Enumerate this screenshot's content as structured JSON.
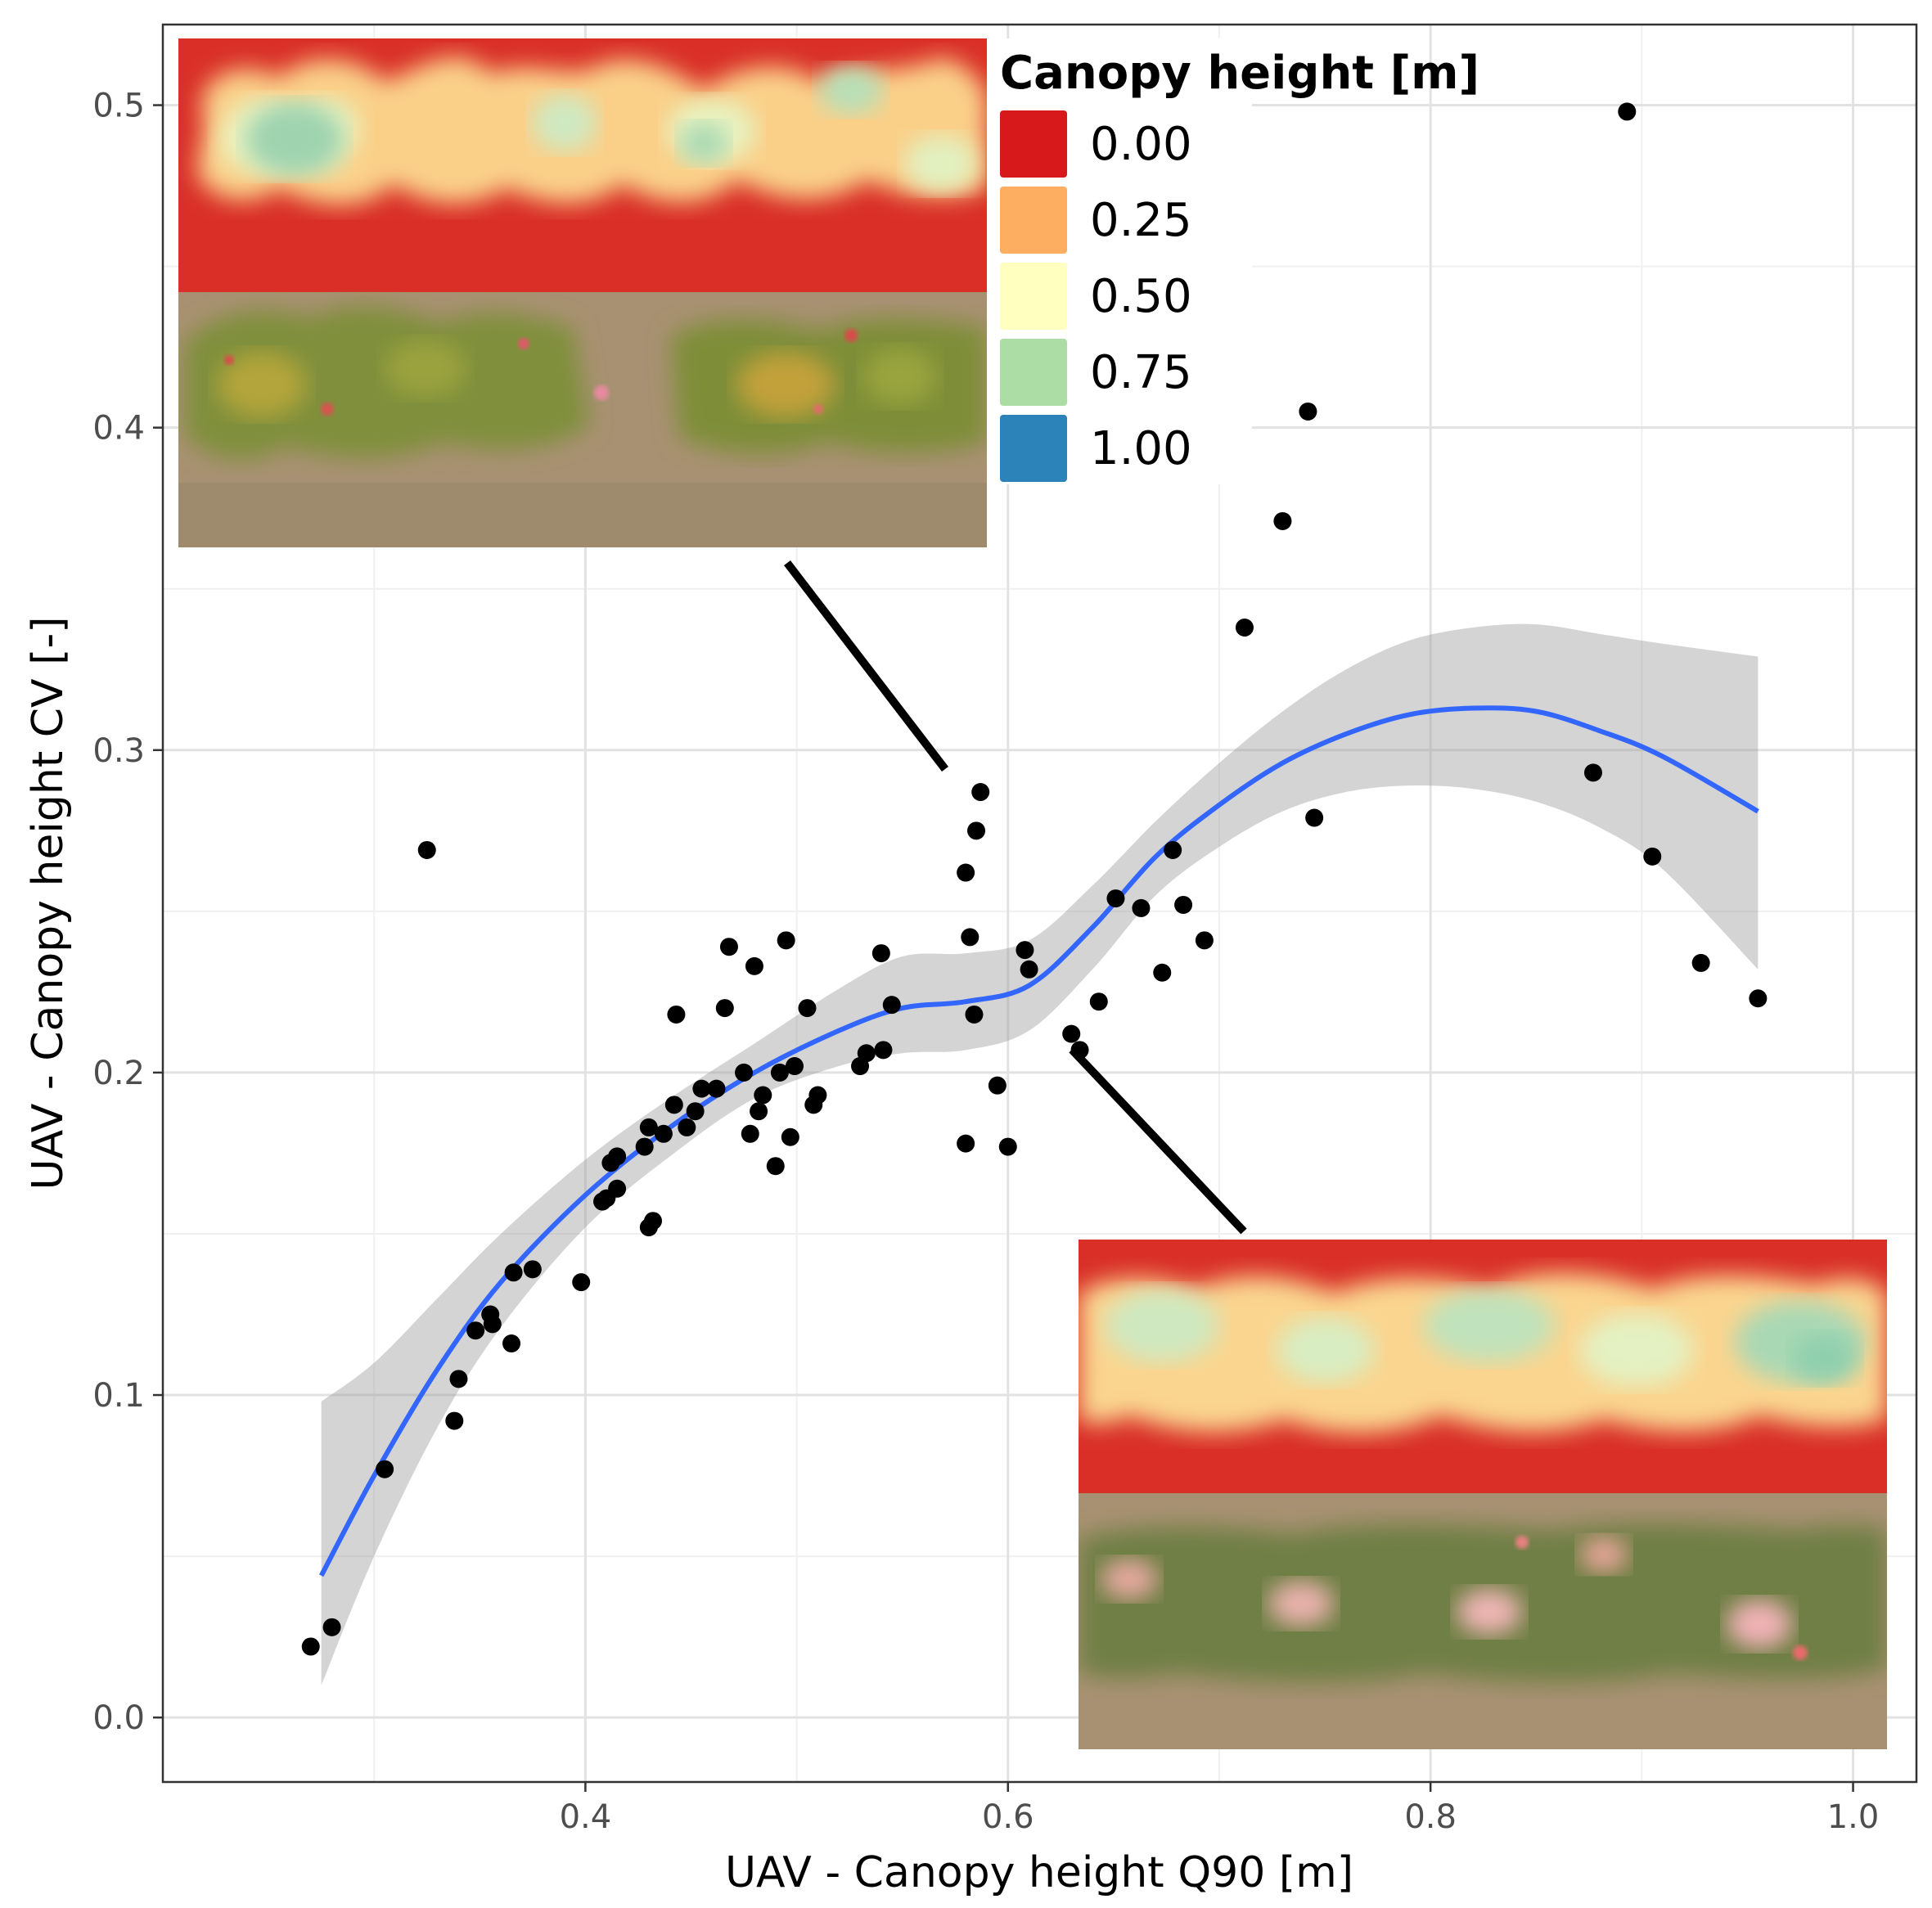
{
  "chart_data": {
    "type": "scatter",
    "xlabel": "UAV - Canopy height Q90 [m]",
    "ylabel": "UAV - Canopy height CV [-]",
    "xlim": [
      0.2,
      1.03
    ],
    "ylim": [
      -0.02,
      0.525
    ],
    "x_ticks": [
      0.4,
      0.6,
      0.8,
      1.0
    ],
    "x_tick_labels": [
      "0.4",
      "0.6",
      "0.8",
      "1.0"
    ],
    "y_ticks": [
      0.0,
      0.1,
      0.2,
      0.3,
      0.4,
      0.5
    ],
    "y_tick_labels": [
      "0.0",
      "0.1",
      "0.2",
      "0.3",
      "0.4",
      "0.5"
    ],
    "grid": true,
    "points": [
      [
        0.27,
        0.022
      ],
      [
        0.28,
        0.028
      ],
      [
        0.305,
        0.077
      ],
      [
        0.325,
        0.269
      ],
      [
        0.338,
        0.092
      ],
      [
        0.34,
        0.105
      ],
      [
        0.348,
        0.12
      ],
      [
        0.355,
        0.125
      ],
      [
        0.356,
        0.122
      ],
      [
        0.365,
        0.116
      ],
      [
        0.366,
        0.138
      ],
      [
        0.375,
        0.139
      ],
      [
        0.398,
        0.135
      ],
      [
        0.408,
        0.16
      ],
      [
        0.41,
        0.161
      ],
      [
        0.412,
        0.172
      ],
      [
        0.415,
        0.174
      ],
      [
        0.415,
        0.164
      ],
      [
        0.428,
        0.177
      ],
      [
        0.43,
        0.183
      ],
      [
        0.43,
        0.152
      ],
      [
        0.432,
        0.154
      ],
      [
        0.437,
        0.181
      ],
      [
        0.442,
        0.19
      ],
      [
        0.443,
        0.218
      ],
      [
        0.448,
        0.183
      ],
      [
        0.452,
        0.188
      ],
      [
        0.455,
        0.195
      ],
      [
        0.462,
        0.195
      ],
      [
        0.466,
        0.22
      ],
      [
        0.468,
        0.239
      ],
      [
        0.475,
        0.2
      ],
      [
        0.478,
        0.181
      ],
      [
        0.48,
        0.233
      ],
      [
        0.482,
        0.188
      ],
      [
        0.484,
        0.193
      ],
      [
        0.49,
        0.171
      ],
      [
        0.492,
        0.2
      ],
      [
        0.495,
        0.241
      ],
      [
        0.497,
        0.18
      ],
      [
        0.499,
        0.202
      ],
      [
        0.505,
        0.22
      ],
      [
        0.508,
        0.19
      ],
      [
        0.51,
        0.193
      ],
      [
        0.53,
        0.202
      ],
      [
        0.533,
        0.206
      ],
      [
        0.54,
        0.237
      ],
      [
        0.541,
        0.207
      ],
      [
        0.545,
        0.221
      ],
      [
        0.58,
        0.178
      ],
      [
        0.58,
        0.262
      ],
      [
        0.582,
        0.242
      ],
      [
        0.584,
        0.218
      ],
      [
        0.585,
        0.275
      ],
      [
        0.587,
        0.287
      ],
      [
        0.595,
        0.196
      ],
      [
        0.6,
        0.177
      ],
      [
        0.608,
        0.238
      ],
      [
        0.61,
        0.232
      ],
      [
        0.63,
        0.212
      ],
      [
        0.634,
        0.207
      ],
      [
        0.643,
        0.222
      ],
      [
        0.651,
        0.254
      ],
      [
        0.663,
        0.251
      ],
      [
        0.673,
        0.231
      ],
      [
        0.678,
        0.269
      ],
      [
        0.683,
        0.252
      ],
      [
        0.693,
        0.241
      ],
      [
        0.712,
        0.338
      ],
      [
        0.73,
        0.371
      ],
      [
        0.742,
        0.405
      ],
      [
        0.745,
        0.279
      ],
      [
        0.877,
        0.293
      ],
      [
        0.893,
        0.498
      ],
      [
        0.905,
        0.267
      ],
      [
        0.928,
        0.234
      ],
      [
        0.955,
        0.223
      ]
    ],
    "smooth_fit": {
      "color": "#3366ff",
      "x": [
        0.275,
        0.3,
        0.33,
        0.36,
        0.4,
        0.44,
        0.48,
        0.52,
        0.55,
        0.58,
        0.61,
        0.64,
        0.67,
        0.7,
        0.73,
        0.76,
        0.79,
        0.82,
        0.85,
        0.88,
        0.91,
        0.955
      ],
      "y": [
        0.044,
        0.075,
        0.108,
        0.135,
        0.162,
        0.183,
        0.2,
        0.213,
        0.22,
        0.222,
        0.227,
        0.245,
        0.267,
        0.283,
        0.296,
        0.305,
        0.311,
        0.313,
        0.312,
        0.306,
        0.298,
        0.281
      ],
      "lower": [
        0.01,
        0.05,
        0.09,
        0.121,
        0.152,
        0.174,
        0.192,
        0.202,
        0.206,
        0.207,
        0.213,
        0.232,
        0.255,
        0.27,
        0.281,
        0.287,
        0.289,
        0.288,
        0.284,
        0.276,
        0.263,
        0.232
      ],
      "upper": [
        0.098,
        0.11,
        0.13,
        0.15,
        0.173,
        0.192,
        0.209,
        0.226,
        0.236,
        0.237,
        0.241,
        0.258,
        0.278,
        0.296,
        0.312,
        0.325,
        0.334,
        0.338,
        0.339,
        0.336,
        0.333,
        0.329
      ]
    },
    "legend": {
      "title": "Canopy height [m]",
      "placement": "top-center",
      "entries": [
        {
          "label": "0.00",
          "color": "#d7191c"
        },
        {
          "label": "0.25",
          "color": "#fdae61"
        },
        {
          "label": "0.50",
          "color": "#ffffbf"
        },
        {
          "label": "0.75",
          "color": "#abdda4"
        },
        {
          "label": "1.00",
          "color": "#2b83ba"
        }
      ]
    },
    "insets": [
      {
        "name": "upper-left inset",
        "canopy_map": "height map with uneven canopy",
        "photo": "aerial view of plot with yellow and red flowers",
        "links_to": [
          0.585,
          0.287
        ]
      },
      {
        "name": "lower-right inset",
        "canopy_map": "height map with dense even canopy",
        "photo": "aerial view of plot with pink flowers",
        "links_to": [
          0.632,
          0.21
        ]
      }
    ]
  }
}
